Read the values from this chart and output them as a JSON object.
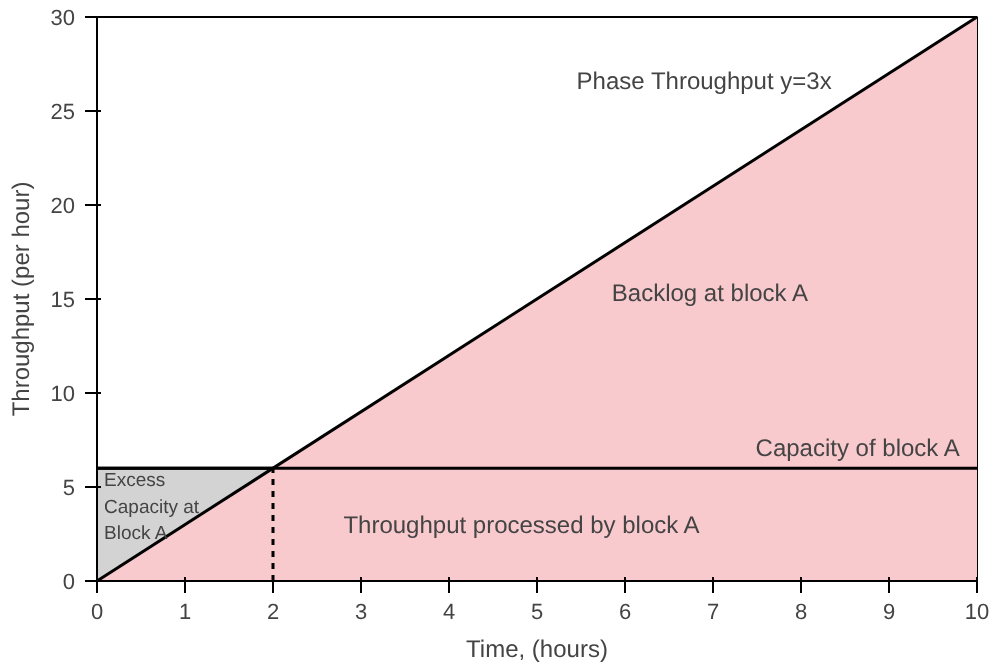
{
  "chart_data": {
    "type": "area",
    "xlabel": "Time, (hours)",
    "ylabel": "Throughput (per hour)",
    "xlim": [
      0,
      10
    ],
    "ylim": [
      0,
      30
    ],
    "xticks": [
      0,
      1,
      2,
      3,
      4,
      5,
      6,
      7,
      8,
      9,
      10
    ],
    "yticks": [
      0,
      5,
      10,
      15,
      20,
      25,
      30
    ],
    "grid": false,
    "series": [
      {
        "type": "area",
        "color": "#d3d3d3",
        "x": [
          0,
          2
        ],
        "values": [
          6,
          6
        ]
      },
      {
        "color": "#f8c9cd",
        "x": [
          0,
          10
        ],
        "values": [
          0,
          30
        ]
      },
      {
        "type": "line",
        "name": "Capacity of block A",
        "color": "#000000",
        "x": [
          0,
          10
        ],
        "values": [
          6,
          6
        ],
        "line_style": "solid"
      },
      {
        "type": "line",
        "color": "#000000",
        "x": [
          2,
          2
        ],
        "values": [
          0,
          6
        ],
        "line_style": "dotted"
      }
    ],
    "annotations": [
      "Phase Throughput y=3x",
      "Backlog at block A",
      "Throughput processed by block A",
      "Excess\nCapacity at\nBlock A"
    ]
  }
}
